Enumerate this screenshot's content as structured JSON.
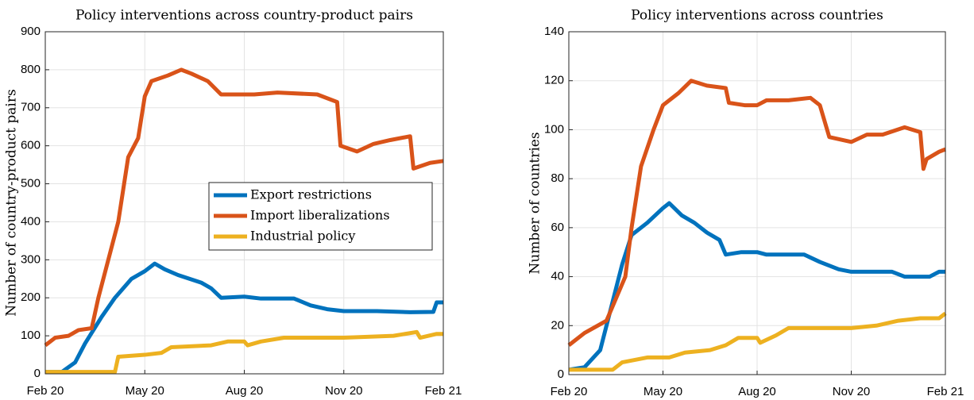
{
  "chart_data": [
    {
      "type": "line",
      "title": "Policy interventions across country-product pairs",
      "y_label": "Number of country-product pairs",
      "xlim": [
        0,
        12
      ],
      "xticks": [
        {
          "value": 0,
          "label": "Feb 20"
        },
        {
          "value": 3,
          "label": "May 20"
        },
        {
          "value": 6,
          "label": "Aug 20"
        },
        {
          "value": 9,
          "label": "Nov 20"
        },
        {
          "value": 12,
          "label": "Feb 21"
        }
      ],
      "ylim": [
        0,
        900
      ],
      "yticks": [
        0,
        100,
        200,
        300,
        400,
        500,
        600,
        700,
        800,
        900
      ],
      "grid": true,
      "legend": "center-right",
      "series": [
        {
          "name": "Export restrictions",
          "color": "#0072BD",
          "x": [
            0,
            0.5,
            0.9,
            1.2,
            1.7,
            2.1,
            2.6,
            3.0,
            3.3,
            3.6,
            4.0,
            4.7,
            5.0,
            5.3,
            6.0,
            6.5,
            7.5,
            8.0,
            8.5,
            9.0,
            10.0,
            11.0,
            11.7,
            11.8,
            12
          ],
          "values": [
            5,
            5,
            30,
            80,
            150,
            200,
            250,
            270,
            290,
            275,
            260,
            240,
            225,
            200,
            203,
            198,
            198,
            180,
            170,
            165,
            165,
            162,
            163,
            188,
            188
          ]
        },
        {
          "name": "Import liberalizations",
          "color": "#D95319",
          "x": [
            0,
            0.3,
            0.7,
            1.0,
            1.4,
            1.6,
            2.2,
            2.5,
            2.8,
            3.0,
            3.2,
            3.7,
            4.1,
            4.4,
            4.9,
            5.3,
            6.3,
            7.0,
            8.2,
            8.8,
            8.9,
            9.4,
            9.9,
            10.4,
            11.0,
            11.1,
            11.6,
            12
          ],
          "values": [
            75,
            95,
            100,
            115,
            120,
            200,
            400,
            570,
            620,
            730,
            770,
            785,
            800,
            790,
            770,
            735,
            735,
            740,
            735,
            715,
            600,
            585,
            605,
            615,
            625,
            540,
            555,
            560
          ]
        },
        {
          "name": "Industrial policy",
          "color": "#EDB120",
          "x": [
            0,
            2.1,
            2.2,
            3.0,
            3.5,
            3.8,
            5.0,
            5.5,
            6.0,
            6.1,
            6.5,
            7.2,
            9.0,
            10.5,
            11.2,
            11.3,
            11.8,
            12
          ],
          "values": [
            5,
            5,
            45,
            50,
            55,
            70,
            75,
            85,
            85,
            75,
            85,
            95,
            95,
            100,
            110,
            95,
            105,
            105
          ]
        }
      ]
    },
    {
      "type": "line",
      "title": "Policy interventions across countries",
      "y_label": "Number of countries",
      "xlim": [
        0,
        12
      ],
      "xticks": [
        {
          "value": 0,
          "label": "Feb 20"
        },
        {
          "value": 3,
          "label": "May 20"
        },
        {
          "value": 6,
          "label": "Aug 20"
        },
        {
          "value": 9,
          "label": "Nov 20"
        },
        {
          "value": 12,
          "label": "Feb 21"
        }
      ],
      "ylim": [
        0,
        140
      ],
      "yticks": [
        0,
        20,
        40,
        60,
        80,
        100,
        120,
        140
      ],
      "grid": true,
      "series": [
        {
          "color": "#0072BD",
          "x": [
            0,
            0.5,
            1.0,
            1.3,
            1.7,
            2.0,
            2.5,
            3.0,
            3.2,
            3.6,
            4.0,
            4.4,
            4.8,
            5.0,
            5.5,
            6.0,
            6.3,
            7.5,
            8.0,
            8.6,
            9.0,
            10.3,
            10.7,
            11.5,
            11.8,
            12
          ],
          "values": [
            2,
            3,
            10,
            25,
            45,
            57,
            62,
            68,
            70,
            65,
            62,
            58,
            55,
            49,
            50,
            50,
            49,
            49,
            46,
            43,
            42,
            42,
            40,
            40,
            42,
            42
          ]
        },
        {
          "color": "#D95319",
          "x": [
            0,
            0.5,
            1.2,
            1.8,
            2.0,
            2.3,
            2.7,
            3.0,
            3.5,
            3.9,
            4.4,
            5.0,
            5.1,
            5.6,
            6.0,
            6.3,
            7.0,
            7.7,
            8.0,
            8.3,
            9.0,
            9.5,
            10.0,
            10.7,
            11.2,
            11.3,
            11.4,
            11.8,
            12
          ],
          "values": [
            12,
            17,
            22,
            40,
            60,
            85,
            100,
            110,
            115,
            120,
            118,
            117,
            111,
            110,
            110,
            112,
            112,
            113,
            110,
            97,
            95,
            98,
            98,
            101,
            99,
            84,
            88,
            91,
            92
          ]
        },
        {
          "color": "#EDB120",
          "x": [
            0,
            1.4,
            1.7,
            2.5,
            3.2,
            3.7,
            4.5,
            5.0,
            5.4,
            6.0,
            6.1,
            6.6,
            7.0,
            8.5,
            9.0,
            9.8,
            10.5,
            11.2,
            11.8,
            12
          ],
          "values": [
            2,
            2,
            5,
            7,
            7,
            9,
            10,
            12,
            15,
            15,
            13,
            16,
            19,
            19,
            19,
            20,
            22,
            23,
            23,
            25
          ]
        }
      ]
    }
  ]
}
